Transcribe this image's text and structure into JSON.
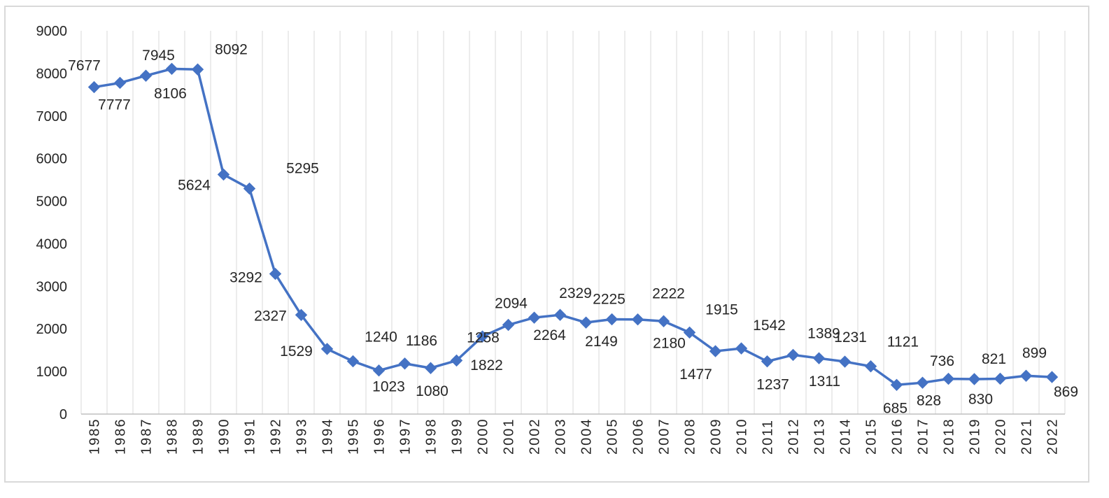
{
  "chart_data": {
    "type": "line",
    "title": "",
    "xlabel": "",
    "ylabel": "",
    "ylim": [
      0,
      9000
    ],
    "y_ticks": [
      0,
      1000,
      2000,
      3000,
      4000,
      5000,
      6000,
      7000,
      8000,
      9000
    ],
    "vertical_gridlines": true,
    "horizontal_gridlines": false,
    "legend": "none",
    "x_tick_rotation": "vertical",
    "categories": [
      "1985",
      "1986",
      "1987",
      "1988",
      "1989",
      "1990",
      "1991",
      "1992",
      "1993",
      "1994",
      "1995",
      "1996",
      "1997",
      "1998",
      "1999",
      "2000",
      "2001",
      "2002",
      "2003",
      "2004",
      "2005",
      "2006",
      "2007",
      "2008",
      "2009",
      "2010",
      "2011",
      "2012",
      "2013",
      "2014",
      "2015",
      "2016",
      "2017",
      "2018",
      "2019",
      "2020",
      "2021",
      "2022"
    ],
    "series": [
      {
        "color": "#4472c4",
        "marker": "diamond",
        "values": [
          7677,
          7777,
          7945,
          8106,
          8092,
          5624,
          5295,
          3292,
          2327,
          1529,
          1240,
          1023,
          1186,
          1080,
          1258,
          1822,
          2094,
          2264,
          2329,
          2149,
          2225,
          2222,
          2180,
          1915,
          1477,
          1542,
          1237,
          1389,
          1311,
          1231,
          1121,
          685,
          736,
          828,
          821,
          830,
          899,
          869
        ]
      }
    ]
  }
}
